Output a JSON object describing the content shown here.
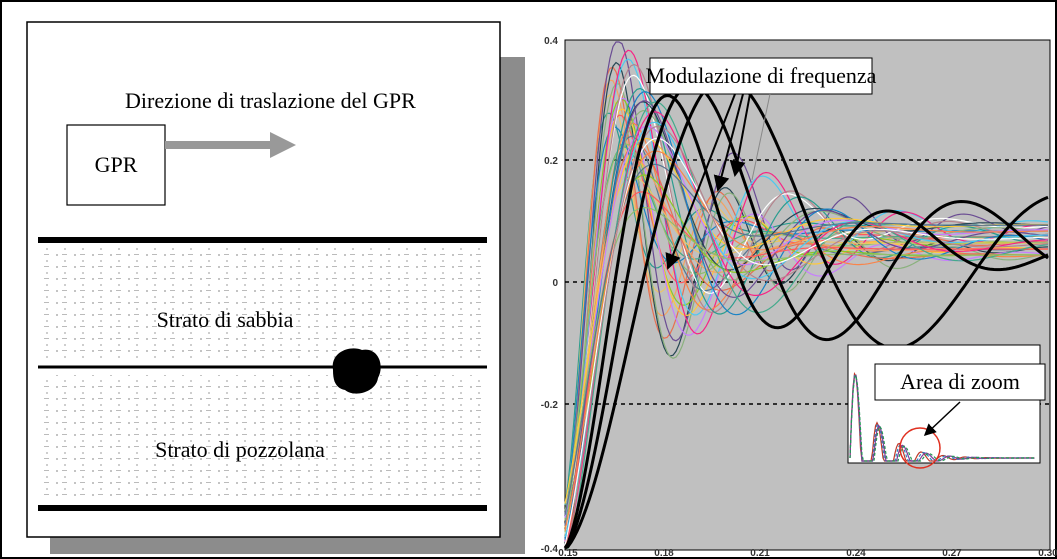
{
  "left_panel": {
    "direction_label": "Direzione di traslazione del GPR",
    "gpr_label": "GPR",
    "layer_1": "Strato di sabbia",
    "layer_2": "Strato di pozzolana"
  },
  "right_panel": {
    "annotation": "Modulazione di frequenza",
    "inset_annotation": "Area di zoom",
    "y_tick_labels": [
      "0.4",
      "0.2",
      "0",
      "-0.2",
      "-0.4"
    ],
    "x_tick_labels": [
      "0.15",
      "0.18",
      "0.21",
      "0.24",
      "0.27",
      "0.30"
    ]
  }
}
